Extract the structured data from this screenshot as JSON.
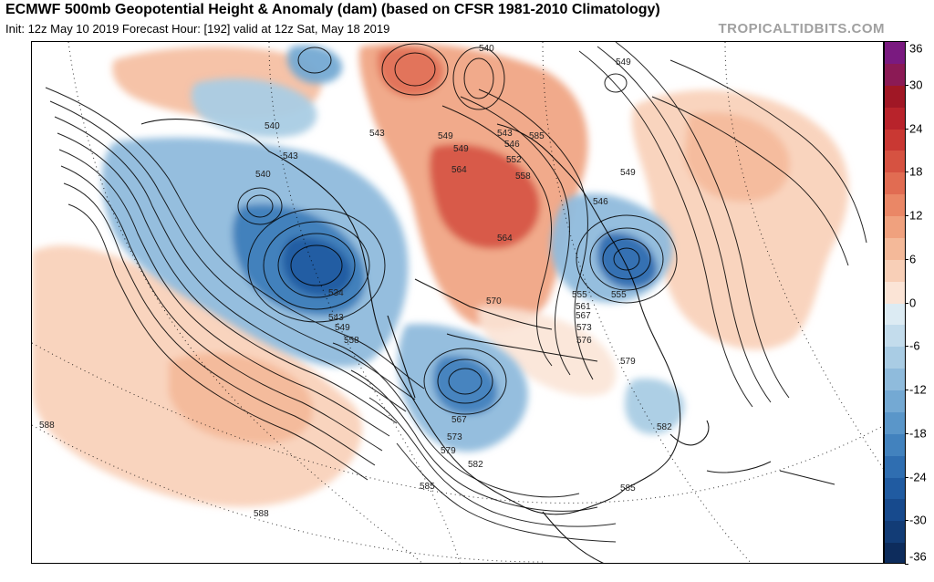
{
  "header": {
    "title": "ECMWF 500mb Geopotential Height & Anomaly (dam) (based on CFSR 1981-2010 Climatology)",
    "subtitle": "Init: 12z May 10 2019   Forecast Hour: [192]   valid at 12z Sat, May 18 2019",
    "watermark": "TROPICALTIDBITS.COM"
  },
  "colorbar": {
    "min": -36,
    "max": 36,
    "step": 3,
    "labels": [
      "36",
      "30",
      "24",
      "18",
      "12",
      "6",
      "0",
      "-6",
      "-12",
      "-18",
      "-24",
      "-30",
      "-36"
    ],
    "colors": {
      "positive": [
        "#fbe4d6",
        "#f8cfb7",
        "#f4b999",
        "#f0a17e",
        "#ea8766",
        "#e16c52",
        "#d65241",
        "#c93833",
        "#b8232b",
        "#a01725",
        "#8b1a55",
        "#7a1a80"
      ],
      "negative": [
        "#dcebf3",
        "#c3dcec",
        "#a9cce4",
        "#8fbbdc",
        "#74a9d3",
        "#5a96c9",
        "#4282be",
        "#2f6eb1",
        "#205ba1",
        "#174a8d",
        "#123c76",
        "#0d2c5c"
      ]
    }
  },
  "contour_labels": [
    "540",
    "540",
    "540",
    "543",
    "543",
    "543",
    "546",
    "546",
    "549",
    "549",
    "549",
    "549",
    "552",
    "558",
    "564",
    "564",
    "567",
    "570",
    "573",
    "573",
    "576",
    "579",
    "579",
    "582",
    "582",
    "585",
    "585",
    "585",
    "588",
    "588",
    "534",
    "543",
    "549",
    "558",
    "555",
    "561",
    "567",
    "555"
  ]
}
